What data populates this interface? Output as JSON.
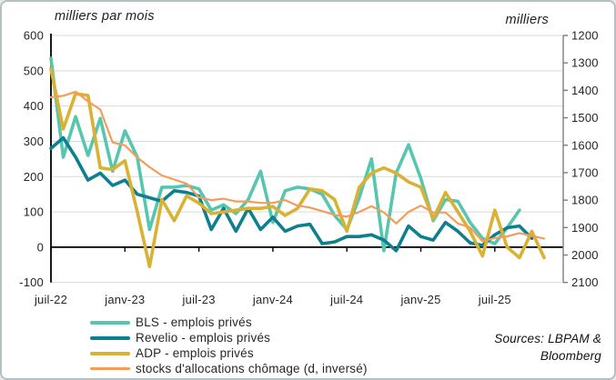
{
  "titles": {
    "left_axis_title": "milliers par mois",
    "right_axis_title": "milliers"
  },
  "source_note": {
    "line1": "Sources: LBPAM &",
    "line2": "Bloomberg"
  },
  "legend": {
    "items": [
      {
        "label": "BLS - emplois privés",
        "color": "#56C6AE",
        "thickness": 4
      },
      {
        "label": "Revelio - emplois privés",
        "color": "#0E7F8F",
        "thickness": 4
      },
      {
        "label": "ADP - emplois privés",
        "color": "#D9B233",
        "thickness": 4
      },
      {
        "label": "stocks d'allocations chômage (d, inversé)",
        "color": "#F49C5B",
        "thickness": 3
      }
    ]
  },
  "colors": {
    "gridline": "#D9D9D9",
    "zero_line": "#000000",
    "left_axis": "#000000",
    "right_axis": "#7F7F7F",
    "tick_text": "#262626"
  },
  "chart_data": {
    "type": "line",
    "title": "",
    "xlabel": "",
    "left_ylabel": "milliers par mois",
    "right_ylabel": "milliers",
    "grid": true,
    "legend_position": "bottom-left",
    "left_axis": {
      "min": -100,
      "max": 600,
      "ticks": [
        600,
        500,
        400,
        300,
        200,
        100,
        0,
        -100
      ]
    },
    "right_axis": {
      "min": 1200,
      "max": 2100,
      "inverted": true,
      "ticks": [
        1200,
        1300,
        1400,
        1500,
        1600,
        1700,
        1800,
        1900,
        2000,
        2100
      ]
    },
    "x_ticks": [
      {
        "label": "juil-22",
        "month_index": 0
      },
      {
        "label": "janv-23",
        "month_index": 6
      },
      {
        "label": "juil-23",
        "month_index": 12
      },
      {
        "label": "janv-24",
        "month_index": 18
      },
      {
        "label": "juil-24",
        "month_index": 24
      },
      {
        "label": "janv-25",
        "month_index": 30
      },
      {
        "label": "juil-25",
        "month_index": 36
      }
    ],
    "months": [
      "juil-22",
      "août-22",
      "sept-22",
      "oct-22",
      "nov-22",
      "déc-22",
      "janv-23",
      "févr-23",
      "mars-23",
      "avr-23",
      "mai-23",
      "juin-23",
      "juil-23",
      "août-23",
      "sept-23",
      "oct-23",
      "nov-23",
      "déc-23",
      "janv-24",
      "févr-24",
      "mars-24",
      "avr-24",
      "mai-24",
      "juin-24",
      "juil-24",
      "août-24",
      "sept-24",
      "oct-24",
      "nov-24",
      "déc-24",
      "janv-25",
      "févr-25",
      "mars-25",
      "avr-25",
      "mai-25",
      "juin-25",
      "juil-25",
      "août-25",
      "sept-25",
      "oct-25",
      "nov-25"
    ],
    "series": [
      {
        "name": "BLS - emplois privés",
        "axis": "left",
        "color": "#56C6AE",
        "width": 3.6,
        "values": [
          535,
          255,
          370,
          260,
          365,
          215,
          330,
          255,
          50,
          170,
          170,
          175,
          165,
          105,
          120,
          95,
          135,
          215,
          70,
          160,
          170,
          165,
          150,
          90,
          50,
          140,
          250,
          -10,
          210,
          290,
          195,
          75,
          135,
          130,
          70,
          25,
          10,
          55,
          105,
          null,
          null
        ]
      },
      {
        "name": "Revelio - emplois privés",
        "axis": "left",
        "color": "#0E7F8F",
        "width": 3.6,
        "values": [
          280,
          310,
          255,
          190,
          210,
          175,
          190,
          150,
          140,
          130,
          160,
          155,
          145,
          50,
          110,
          45,
          110,
          50,
          85,
          45,
          60,
          65,
          10,
          15,
          30,
          30,
          35,
          20,
          -10,
          60,
          30,
          20,
          70,
          45,
          12,
          5,
          35,
          55,
          60,
          25,
          null
        ]
      },
      {
        "name": "ADP - emplois privés",
        "axis": "left",
        "color": "#D9B233",
        "width": 3.6,
        "values": [
          505,
          335,
          435,
          430,
          225,
          220,
          245,
          100,
          -55,
          135,
          75,
          145,
          125,
          95,
          100,
          105,
          110,
          110,
          115,
          90,
          110,
          165,
          160,
          135,
          45,
          170,
          210,
          225,
          210,
          185,
          170,
          80,
          155,
          100,
          45,
          -25,
          105,
          0,
          -30,
          45,
          -30
        ]
      },
      {
        "name": "stocks d'allocations chômage (d, inversé)",
        "axis": "right",
        "color": "#F49C5B",
        "width": 2.2,
        "values": [
          1425,
          1420,
          1405,
          1440,
          1470,
          1590,
          1600,
          1645,
          1680,
          1710,
          1725,
          1740,
          1790,
          1800,
          1795,
          1805,
          1805,
          1810,
          1810,
          1800,
          1820,
          1827,
          1840,
          1854,
          1860,
          1843,
          1822,
          1845,
          1885,
          1843,
          1820,
          1845,
          1845,
          1885,
          1900,
          1950,
          1938,
          1932,
          1920,
          1930,
          1940
        ]
      }
    ]
  }
}
